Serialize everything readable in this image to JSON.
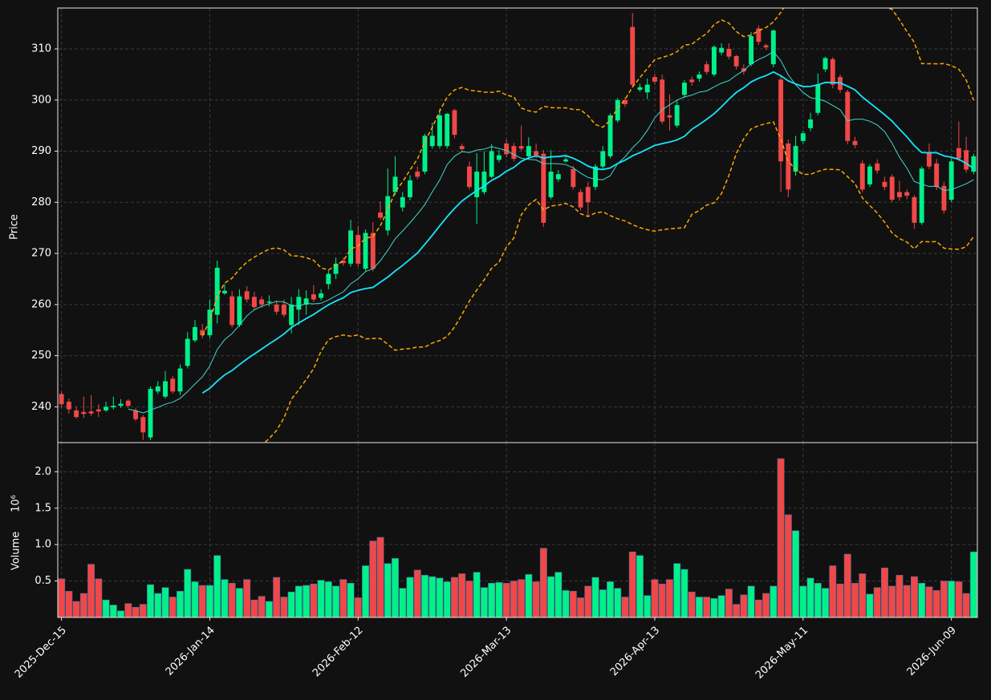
{
  "chart_data": {
    "type": "candlestick",
    "ylabel": "Price",
    "volume_ylabel": "Volume",
    "volume_offset": "10⁶",
    "categories": [
      "2025-Dec-15",
      null,
      null,
      null,
      null,
      null,
      null,
      null,
      null,
      null,
      null,
      null,
      null,
      null,
      null,
      null,
      null,
      null,
      null,
      null,
      "2026-Jan-14",
      null,
      null,
      null,
      null,
      null,
      null,
      null,
      null,
      null,
      null,
      null,
      null,
      null,
      null,
      null,
      null,
      null,
      null,
      null,
      "2026-Feb-12",
      null,
      null,
      null,
      null,
      null,
      null,
      null,
      null,
      null,
      null,
      null,
      null,
      null,
      null,
      null,
      null,
      null,
      null,
      null,
      "2026-Mar-13",
      null,
      null,
      null,
      null,
      null,
      null,
      null,
      null,
      null,
      null,
      null,
      null,
      null,
      null,
      null,
      null,
      null,
      null,
      null,
      "2026-Apr-13",
      null,
      null,
      null,
      null,
      null,
      null,
      null,
      null,
      null,
      null,
      null,
      null,
      null,
      null,
      null,
      null,
      null,
      null,
      null,
      "2026-May-11",
      null,
      null,
      null,
      null,
      null,
      null,
      null,
      null,
      null,
      null,
      null,
      null,
      null,
      null,
      null,
      null,
      null,
      null,
      null,
      "2026-Jun-09",
      null,
      null,
      null
    ],
    "open": [
      242.5,
      241,
      239.3,
      239,
      239.1,
      239.5,
      239.3,
      239.9,
      240.2,
      241.2,
      239.3,
      238,
      234,
      243,
      242,
      245.5,
      243,
      248,
      253,
      255,
      254,
      258,
      262.2,
      261.6,
      256,
      262.6,
      261.5,
      261,
      260.4,
      260,
      260,
      256,
      259,
      260,
      262,
      261.3,
      264,
      266,
      268.6,
      268,
      273.6,
      267,
      274,
      278,
      274.5,
      282,
      279,
      281,
      286,
      286,
      291,
      291,
      291,
      298,
      291,
      287,
      281,
      282,
      285,
      288.3,
      291.5,
      291,
      291,
      289,
      290,
      289.5,
      281,
      284.5,
      288,
      286.5,
      282,
      283,
      283,
      287,
      289,
      296,
      300,
      314.3,
      302,
      301.5,
      304.5,
      304,
      297,
      295,
      301,
      304,
      304.2,
      307,
      305,
      309.3,
      310,
      308.6,
      306.2,
      307,
      314,
      310.7,
      307,
      304,
      291.5,
      286,
      292,
      294.5,
      297.5,
      306,
      308,
      304.5,
      301.6,
      292,
      287.6,
      283.5,
      287.6,
      284,
      285,
      282,
      282,
      281,
      276,
      289.6,
      287.6,
      283.2,
      280.5,
      290.6,
      290.2,
      286
    ],
    "high": [
      243,
      241.6,
      240,
      242,
      242.3,
      240.5,
      241,
      242,
      241.5,
      241.5,
      239.8,
      238.4,
      244,
      245,
      247,
      246,
      248.3,
      254.6,
      257,
      256.2,
      261,
      268.6,
      264,
      262.6,
      263,
      263.6,
      262.5,
      261.6,
      261.8,
      260.8,
      261,
      261.5,
      263,
      262.8,
      263.8,
      263,
      266.6,
      269.2,
      269.2,
      276.6,
      275.4,
      274.7,
      276.1,
      280.2,
      286.6,
      289,
      282,
      285.3,
      287,
      293.4,
      295.6,
      298.3,
      297.5,
      298.3,
      291.5,
      288,
      289.6,
      290,
      291.4,
      290.2,
      292.3,
      291.6,
      295,
      292.7,
      291.5,
      290.2,
      290.2,
      286.3,
      289,
      287.1,
      282.6,
      284,
      287.5,
      291,
      297.4,
      300.4,
      300.5,
      317,
      303.2,
      304.2,
      305.1,
      305,
      301.1,
      300,
      303.9,
      304.6,
      305.6,
      307.6,
      310.7,
      311.1,
      311.1,
      308.8,
      307,
      313.3,
      314.6,
      311,
      313.8,
      304.7,
      292.3,
      293,
      294,
      297.5,
      305.2,
      308.5,
      308.4,
      305,
      302,
      292.8,
      288.2,
      287.5,
      288.4,
      285,
      285.5,
      284.2,
      282.5,
      281.4,
      287,
      291.5,
      288.5,
      284,
      288.6,
      295.8,
      292.8,
      289.5
    ],
    "low": [
      239.8,
      238.7,
      237.7,
      237.8,
      238.2,
      238,
      239,
      239.5,
      239.8,
      239.8,
      237.2,
      233.5,
      233.5,
      242.5,
      241.6,
      242.6,
      242.3,
      247.5,
      252.6,
      253.4,
      253.4,
      256.3,
      261.9,
      255.5,
      255.6,
      260.4,
      259,
      259.4,
      259.7,
      258,
      257.5,
      254.4,
      256,
      258,
      260.5,
      260.8,
      263,
      265,
      267.6,
      267.4,
      267.5,
      266.6,
      266.5,
      276.6,
      273.5,
      281.4,
      278.2,
      280.4,
      284.5,
      285.5,
      290.5,
      290.5,
      290.5,
      292.5,
      289.8,
      282.5,
      275.8,
      281.5,
      284.7,
      287.8,
      288.8,
      288,
      290,
      288.4,
      288.6,
      275.2,
      280.6,
      284,
      287.8,
      282.5,
      278.4,
      277.3,
      282.4,
      286.6,
      288.6,
      295.6,
      298.6,
      302.6,
      301.6,
      300.2,
      303,
      295.3,
      294,
      294.6,
      300.4,
      302.8,
      303.6,
      305,
      304.6,
      308.8,
      308,
      306,
      305,
      306.6,
      310.8,
      309.8,
      306.4,
      282,
      281,
      285.2,
      291.5,
      293.9,
      297,
      305.5,
      302.3,
      301.4,
      291.4,
      290.6,
      282,
      283,
      285.6,
      282.4,
      280,
      280.3,
      280.6,
      274.8,
      275.6,
      286.5,
      282.4,
      277.8,
      280,
      288,
      285.8,
      285.5
    ],
    "close": [
      240.5,
      239.5,
      238,
      238.6,
      238.7,
      239.1,
      240,
      240.2,
      240.6,
      240.2,
      237.6,
      235,
      243.5,
      244,
      245,
      243,
      247.5,
      253.3,
      255.6,
      254,
      259,
      267.2,
      262.7,
      256,
      261.6,
      261,
      259.5,
      260,
      260.6,
      258.6,
      258,
      260,
      261.5,
      261.2,
      261,
      262.2,
      266,
      268,
      268.1,
      274.5,
      268,
      274,
      267,
      277,
      281.2,
      285,
      281,
      284.3,
      285,
      293,
      293,
      297,
      297.3,
      293.2,
      290.4,
      283,
      286,
      286,
      290,
      289.2,
      289.4,
      288.5,
      290.5,
      291,
      289.2,
      276,
      286,
      285.5,
      288.4,
      283,
      279,
      280,
      287,
      290,
      297,
      300,
      299.2,
      303,
      302.5,
      303,
      303.6,
      295.8,
      296.6,
      299,
      303.4,
      303.5,
      305,
      305.5,
      310.4,
      310.2,
      308.5,
      306.6,
      305.6,
      312.5,
      311.4,
      310.3,
      313.6,
      288,
      282.5,
      291,
      293.5,
      296.2,
      303,
      308.2,
      303,
      302,
      292,
      291.2,
      282.5,
      287,
      286.2,
      283,
      280.5,
      281,
      281.3,
      276,
      286.6,
      287,
      283,
      278.4,
      288,
      288.6,
      286.4,
      289
    ],
    "volume": [
      0.53,
      0.36,
      0.22,
      0.33,
      0.73,
      0.53,
      0.24,
      0.17,
      0.09,
      0.19,
      0.14,
      0.18,
      0.45,
      0.33,
      0.41,
      0.28,
      0.36,
      0.66,
      0.49,
      0.44,
      0.44,
      0.85,
      0.52,
      0.47,
      0.4,
      0.52,
      0.24,
      0.29,
      0.22,
      0.55,
      0.28,
      0.35,
      0.43,
      0.44,
      0.46,
      0.51,
      0.49,
      0.43,
      0.52,
      0.47,
      0.27,
      0.71,
      1.05,
      1.1,
      0.74,
      0.81,
      0.4,
      0.55,
      0.65,
      0.58,
      0.56,
      0.54,
      0.49,
      0.55,
      0.6,
      0.5,
      0.62,
      0.41,
      0.47,
      0.48,
      0.47,
      0.5,
      0.52,
      0.59,
      0.49,
      0.95,
      0.56,
      0.62,
      0.37,
      0.36,
      0.27,
      0.43,
      0.55,
      0.38,
      0.49,
      0.4,
      0.28,
      0.9,
      0.85,
      0.3,
      0.52,
      0.46,
      0.52,
      0.74,
      0.66,
      0.35,
      0.28,
      0.28,
      0.26,
      0.3,
      0.39,
      0.18,
      0.31,
      0.43,
      0.24,
      0.33,
      0.43,
      2.18,
      1.41,
      1.19,
      0.43,
      0.54,
      0.47,
      0.4,
      0.71,
      0.46,
      0.87,
      0.47,
      0.6,
      0.32,
      0.41,
      0.68,
      0.43,
      0.58,
      0.44,
      0.56,
      0.47,
      0.42,
      0.37,
      0.5,
      0.5,
      0.49,
      0.33,
      0.9
    ],
    "ylim": [
      233,
      318
    ],
    "yticks": [
      240,
      250,
      260,
      270,
      280,
      290,
      300,
      310
    ],
    "volume_ylim": [
      0,
      2.4
    ],
    "volume_yticks": [
      0.5,
      {
        "value": 1,
        "label": "1.0"
      },
      1.5,
      {
        "value": 2,
        "label": "2.0"
      }
    ],
    "up_color": "#00f08a",
    "down_color": "#f04848",
    "grid": true,
    "ma_colors": [
      "#3fd9cc",
      "#14e6ff"
    ],
    "band_color": "#ffa500"
  }
}
